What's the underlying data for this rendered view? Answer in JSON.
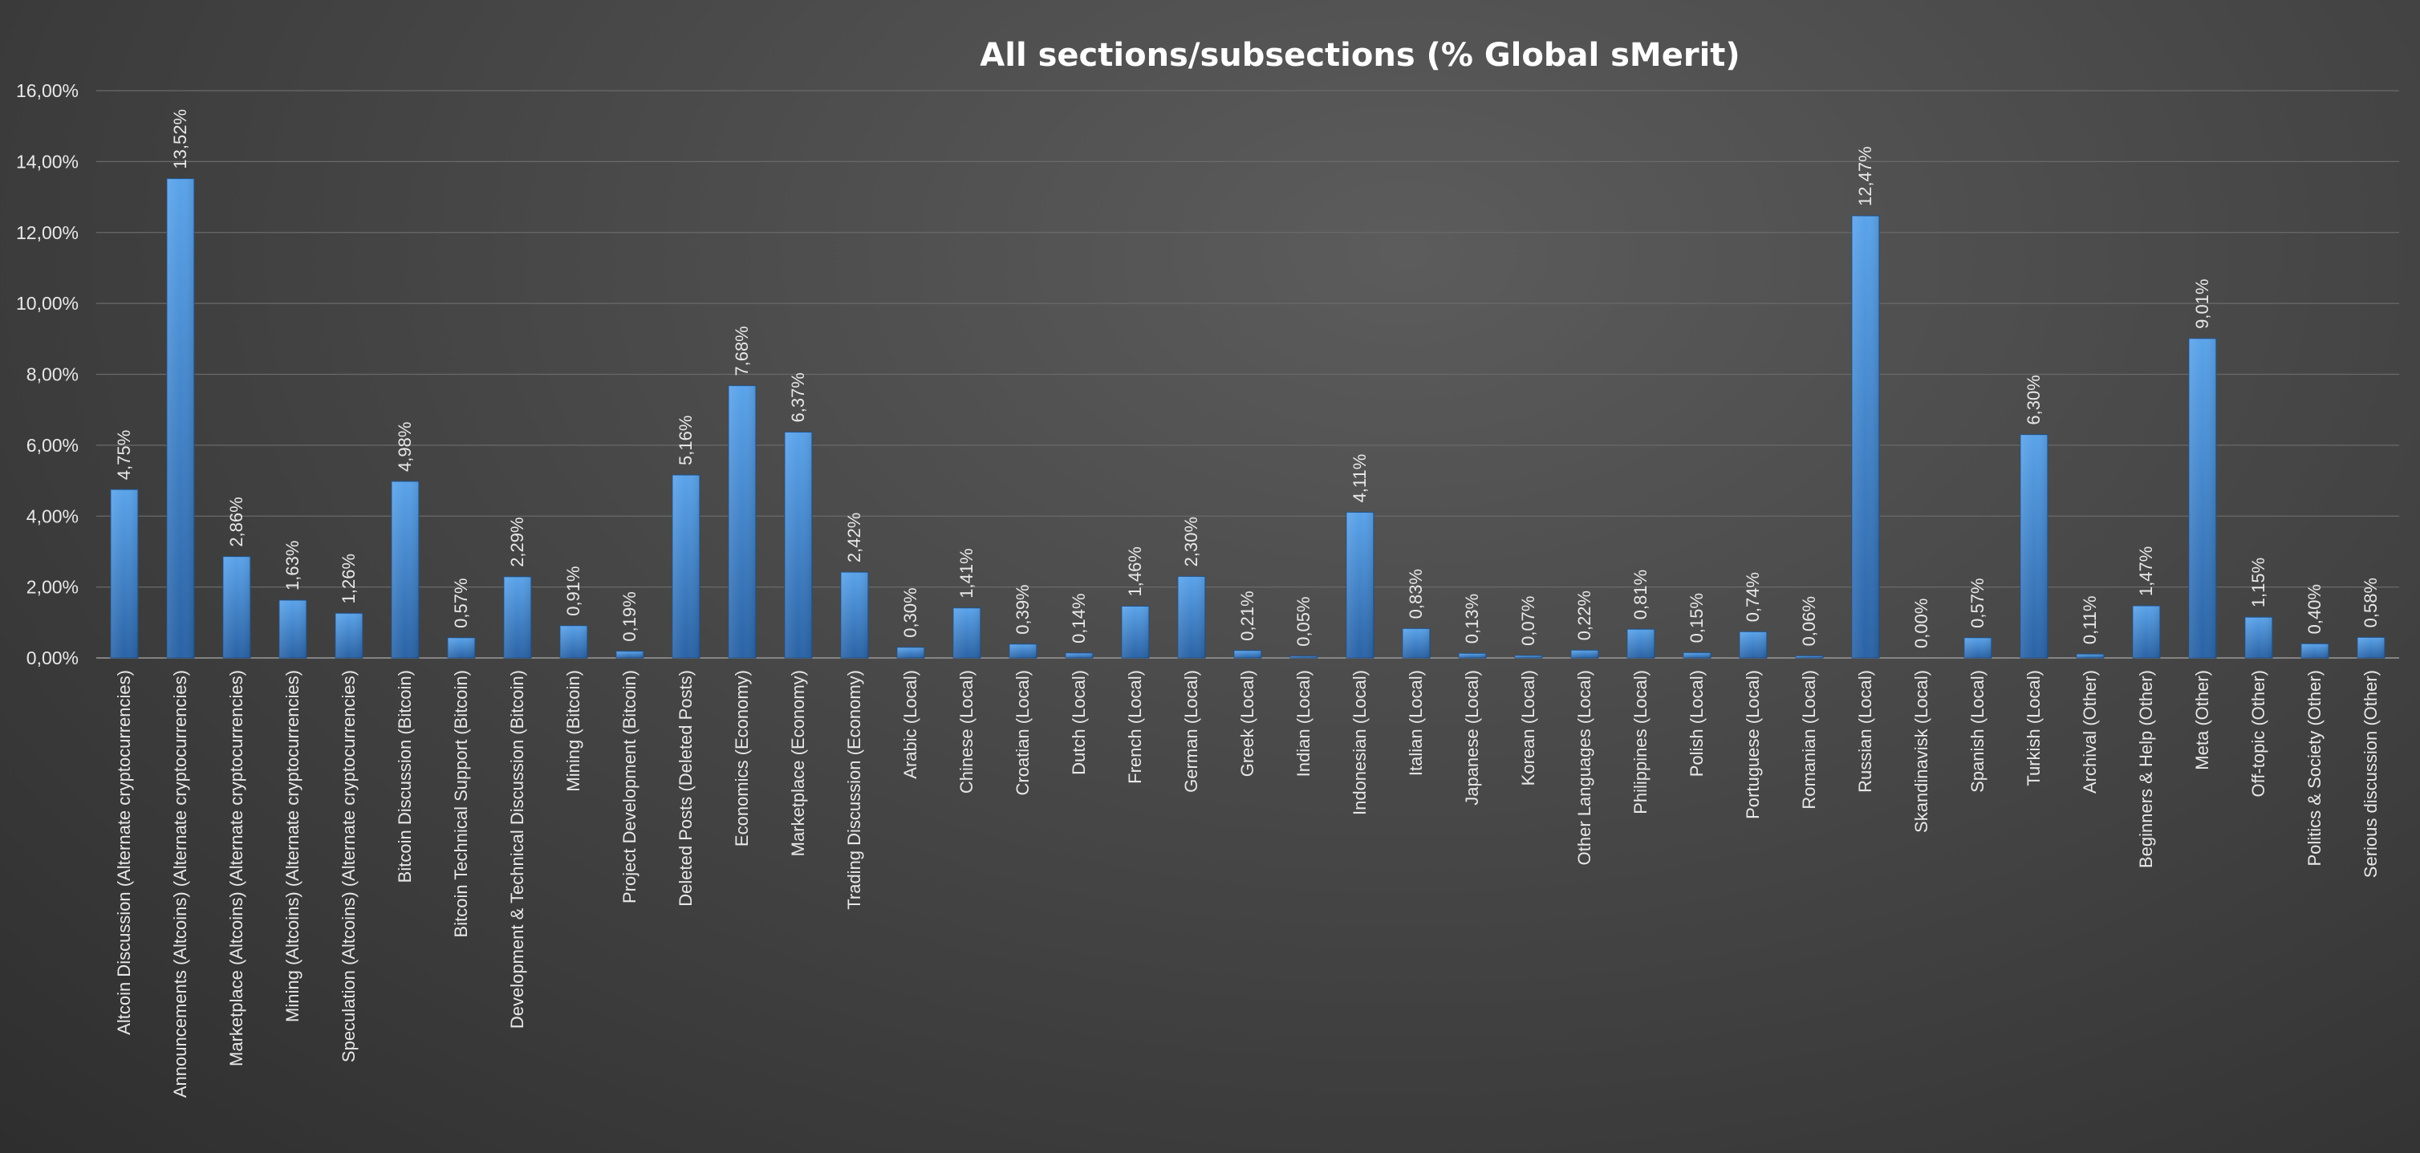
{
  "chart_data": {
    "type": "bar",
    "title": "All sections/subsections (% Global sMerit)",
    "xlabel": "",
    "ylabel": "",
    "ylim": [
      0,
      16
    ],
    "yticks": [
      0,
      2,
      4,
      6,
      8,
      10,
      12,
      14,
      16
    ],
    "ytick_labels": [
      "0,00%",
      "2,00%",
      "4,00%",
      "6,00%",
      "8,00%",
      "10,00%",
      "12,00%",
      "14,00%",
      "16,00%"
    ],
    "grid": true,
    "legend": "none",
    "bar_color": "#3c86d2",
    "categories": [
      "Altcoin Discussion  (Alternate cryptocurrencies)",
      "Announcements (Altcoins)  (Alternate cryptocurrencies)",
      "Marketplace (Altcoins)  (Alternate cryptocurrencies)",
      "Mining (Altcoins)  (Alternate cryptocurrencies)",
      "Speculation (Altcoins)  (Alternate cryptocurrencies)",
      "Bitcoin Discussion  (Bitcoin)",
      "Bitcoin Technical Support  (Bitcoin)",
      "Development & Technical Discussion  (Bitcoin)",
      "Mining  (Bitcoin)",
      "Project Development  (Bitcoin)",
      "Deleted Posts  (Deleted Posts)",
      "Economics  (Economy)",
      "Marketplace  (Economy)",
      "Trading Discussion  (Economy)",
      "Arabic  (Local)",
      "Chinese  (Local)",
      "Croatian  (Local)",
      "Dutch  (Local)",
      "French  (Local)",
      "German  (Local)",
      "Greek  (Local)",
      "Indian  (Local)",
      "Indonesian  (Local)",
      "Italian  (Local)",
      "Japanese  (Local)",
      "Korean  (Local)",
      "Other Languages  (Local)",
      "Philippines  (Local)",
      "Polish  (Local)",
      "Portuguese  (Local)",
      "Romanian  (Local)",
      "Russian  (Local)",
      "Skandinavisk  (Local)",
      "Spanish  (Local)",
      "Turkish  (Local)",
      "Archival  (Other)",
      "Beginners & Help  (Other)",
      "Meta  (Other)",
      "Off-topic  (Other)",
      "Politics & Society  (Other)",
      "Serious discussion  (Other)"
    ],
    "values": [
      4.75,
      13.52,
      2.86,
      1.63,
      1.26,
      4.98,
      0.57,
      2.29,
      0.91,
      0.19,
      5.16,
      7.68,
      6.37,
      2.42,
      0.3,
      1.41,
      0.39,
      0.14,
      1.46,
      2.3,
      0.21,
      0.05,
      4.11,
      0.83,
      0.13,
      0.07,
      0.22,
      0.81,
      0.15,
      0.74,
      0.06,
      12.47,
      0.0,
      0.57,
      6.3,
      0.11,
      1.47,
      9.01,
      1.15,
      0.4,
      0.58
    ],
    "value_labels": [
      "4,75%",
      "13,52%",
      "2,86%",
      "1,63%",
      "1,26%",
      "4,98%",
      "0,57%",
      "2,29%",
      "0,91%",
      "0,19%",
      "5,16%",
      "7,68%",
      "6,37%",
      "2,42%",
      "0,30%",
      "1,41%",
      "0,39%",
      "0,14%",
      "1,46%",
      "2,30%",
      "0,21%",
      "0,05%",
      "4,11%",
      "0,83%",
      "0,13%",
      "0,07%",
      "0,22%",
      "0,81%",
      "0,15%",
      "0,74%",
      "0,06%",
      "12,47%",
      "0,00%",
      "0,57%",
      "6,30%",
      "0,11%",
      "1,47%",
      "9,01%",
      "1,15%",
      "0,40%",
      "0,58%"
    ]
  }
}
